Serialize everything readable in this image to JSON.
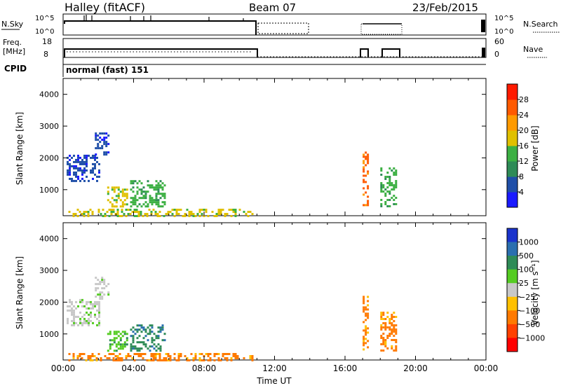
{
  "header": {
    "title": "Halley (fitACF)",
    "beam": "Beam 07",
    "date": "23/Feb/2015"
  },
  "noise_panel": {
    "left_label": "N.Sky",
    "left_ticks": [
      "10^5",
      "10^0"
    ],
    "right_ticks": [
      "10^5",
      "10^0"
    ],
    "right_label": "N.Search"
  },
  "freq_panel": {
    "left_label_1": "Freq.",
    "left_label_2": "[MHz]",
    "left_ticks": [
      "18",
      "8"
    ],
    "right_ticks": [
      "60",
      "0"
    ],
    "right_label": "Nave"
  },
  "cpid": {
    "label": "CPID",
    "value": "normal (fast) 151"
  },
  "chart_data": [
    {
      "type": "heatmap",
      "name": "power",
      "ylabel": "Slant Range [km]",
      "yticks": [
        "1000",
        "2000",
        "3000",
        "4000"
      ],
      "ylim": [
        180,
        4500
      ],
      "xlim": [
        0,
        24
      ],
      "colorbar": {
        "label": "Power [dB]",
        "ticks": [
          "4",
          "8",
          "12",
          "16",
          "20",
          "24",
          "28"
        ],
        "colors": [
          "#1a1aff",
          "#1f4fa8",
          "#2e8b57",
          "#3cb043",
          "#e0c000",
          "#ff9a00",
          "#ff5a00",
          "#ff1a00"
        ]
      },
      "regions": [
        {
          "t0": 0.3,
          "t1": 10.8,
          "r0": 180,
          "r1": 400,
          "level": 4
        },
        {
          "t0": 3.8,
          "t1": 5.8,
          "r0": 450,
          "r1": 1300,
          "level": 3
        },
        {
          "t0": 2.5,
          "t1": 3.6,
          "r0": 500,
          "r1": 1100,
          "level": 4
        },
        {
          "t0": 0.2,
          "t1": 2.0,
          "r0": 1300,
          "r1": 2100,
          "level": 1
        },
        {
          "t0": 1.8,
          "t1": 2.6,
          "r0": 2100,
          "r1": 2800,
          "level": 1
        },
        {
          "t0": 17.0,
          "t1": 17.3,
          "r0": 500,
          "r1": 2200,
          "level": 6
        },
        {
          "t0": 18.0,
          "t1": 18.9,
          "r0": 500,
          "r1": 1700,
          "level": 3
        }
      ]
    },
    {
      "type": "heatmap",
      "name": "velocity",
      "ylabel": "Slant Range [km]",
      "yticks": [
        "1000",
        "2000",
        "3000",
        "4000"
      ],
      "ylim": [
        180,
        4500
      ],
      "xlim": [
        0,
        24
      ],
      "xticks": [
        "00:00",
        "04:00",
        "08:00",
        "12:00",
        "16:00",
        "20:00",
        "00:00"
      ],
      "xlabel": "Time UT",
      "colorbar": {
        "label": "Velocity [m s⁻¹]",
        "ticks": [
          "1000",
          "500",
          "100",
          "25",
          "−25",
          "−100",
          "−500",
          "−1000"
        ],
        "colors": [
          "#1a33cc",
          "#2a6faf",
          "#2e8b57",
          "#55cc22",
          "#c8c8c8",
          "#ffc000",
          "#ff7a00",
          "#ff4000",
          "#ff0000"
        ]
      },
      "regions": [
        {
          "t0": 0.3,
          "t1": 10.8,
          "r0": 180,
          "r1": 400,
          "level": 6
        },
        {
          "t0": 3.8,
          "t1": 5.8,
          "r0": 450,
          "r1": 1300,
          "level": 2
        },
        {
          "t0": 2.5,
          "t1": 3.6,
          "r0": 500,
          "r1": 1100,
          "level": 3
        },
        {
          "t0": 0.2,
          "t1": 2.0,
          "r0": 1300,
          "r1": 2100,
          "level": 4
        },
        {
          "t0": 1.8,
          "t1": 2.6,
          "r0": 2100,
          "r1": 2800,
          "level": 4
        },
        {
          "t0": 17.0,
          "t1": 17.3,
          "r0": 500,
          "r1": 2200,
          "level": 6
        },
        {
          "t0": 18.0,
          "t1": 18.9,
          "r0": 500,
          "r1": 1700,
          "level": 6
        }
      ]
    }
  ]
}
